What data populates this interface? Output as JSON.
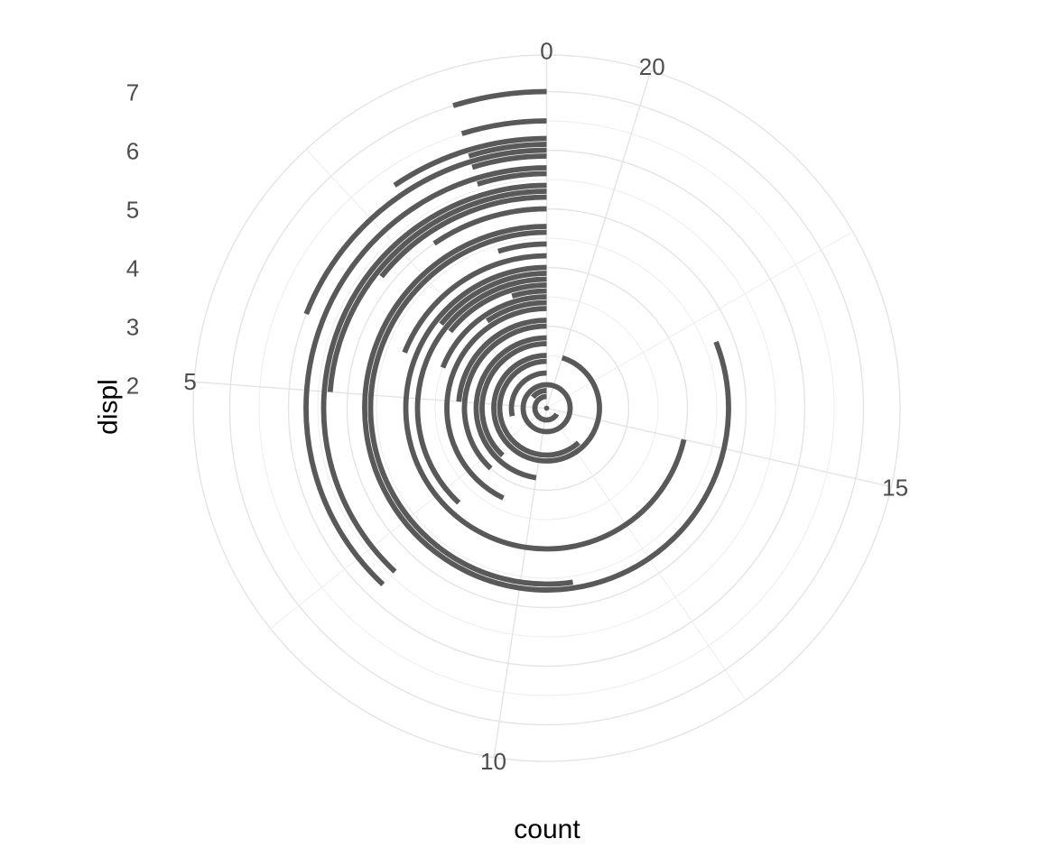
{
  "chart_data": {
    "type": "bar",
    "coord": "polar",
    "theta": "y",
    "direction": "counterclockwise",
    "start": "top",
    "title": "",
    "xlabel": "displ",
    "ylabel": "count",
    "r_axis": {
      "label": "displ",
      "major_ticks": [
        2,
        3,
        4,
        5,
        6,
        7
      ],
      "minor_ticks": [
        2.5,
        3.5,
        4.5,
        5.5,
        6.5
      ],
      "range": [
        1.6,
        7.6
      ]
    },
    "theta_axis": {
      "label": "count",
      "major_ticks": [
        0,
        5,
        10,
        15,
        20
      ],
      "minor_ticks": [
        2.5,
        7.5,
        12.5,
        17.5
      ],
      "range": [
        0,
        21
      ]
    },
    "categories": [
      1.6,
      1.8,
      1.9,
      2.0,
      2.2,
      2.4,
      2.5,
      2.7,
      2.8,
      3.0,
      3.1,
      3.3,
      3.4,
      3.5,
      3.6,
      3.7,
      3.8,
      3.9,
      4.0,
      4.2,
      4.4,
      4.6,
      4.7,
      5.0,
      5.2,
      5.3,
      5.4,
      5.6,
      5.7,
      5.9,
      6.0,
      6.1,
      6.2,
      6.5,
      7.0
    ],
    "values": [
      5,
      14,
      3,
      21,
      6,
      13,
      20,
      8,
      10,
      8,
      5,
      9,
      2,
      4,
      1,
      3,
      8,
      3,
      15,
      4,
      1,
      11,
      17,
      2,
      3,
      5,
      8,
      1,
      8,
      1,
      4,
      1,
      2,
      1,
      1
    ],
    "grid": true,
    "legend": "none"
  },
  "colors": {
    "bar": "#595959",
    "grid_major": "#e4e4e4",
    "grid_minor": "#ededed",
    "tick_label": "#4d4d4d",
    "axis_title": "#000000",
    "background": "#ffffff"
  },
  "titles": {
    "x_title": "count",
    "y_title": "displ"
  }
}
